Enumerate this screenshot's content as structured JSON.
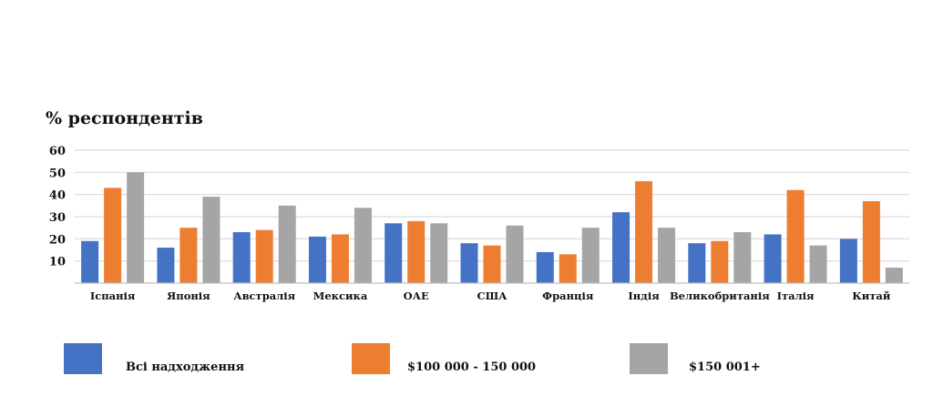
{
  "chart_data": {
    "type": "bar",
    "ylabel": "% респондентів",
    "ylim": [
      0,
      60
    ],
    "yticks": [
      10,
      20,
      30,
      40,
      50,
      60
    ],
    "grid": true,
    "legend_position": "bottom",
    "categories": [
      "Іспанія",
      "Японія",
      "Австралія",
      "Мексика",
      "ОАЕ",
      "США",
      "Франція",
      "Індія",
      "Великобританія",
      "Італія",
      "Китай"
    ],
    "series": [
      {
        "name": "Всі надходження",
        "color": "#4472c4",
        "values": [
          19,
          16,
          23,
          21,
          27,
          18,
          14,
          32,
          18,
          22,
          20
        ]
      },
      {
        "name": "$100 000 - 150 000",
        "color": "#ed7d31",
        "values": [
          43,
          25,
          24,
          22,
          28,
          17,
          13,
          46,
          19,
          42,
          37
        ]
      },
      {
        "name": "$150 001+",
        "color": "#a5a5a5",
        "values": [
          50,
          39,
          35,
          34,
          27,
          26,
          25,
          25,
          23,
          17,
          7
        ]
      }
    ]
  }
}
